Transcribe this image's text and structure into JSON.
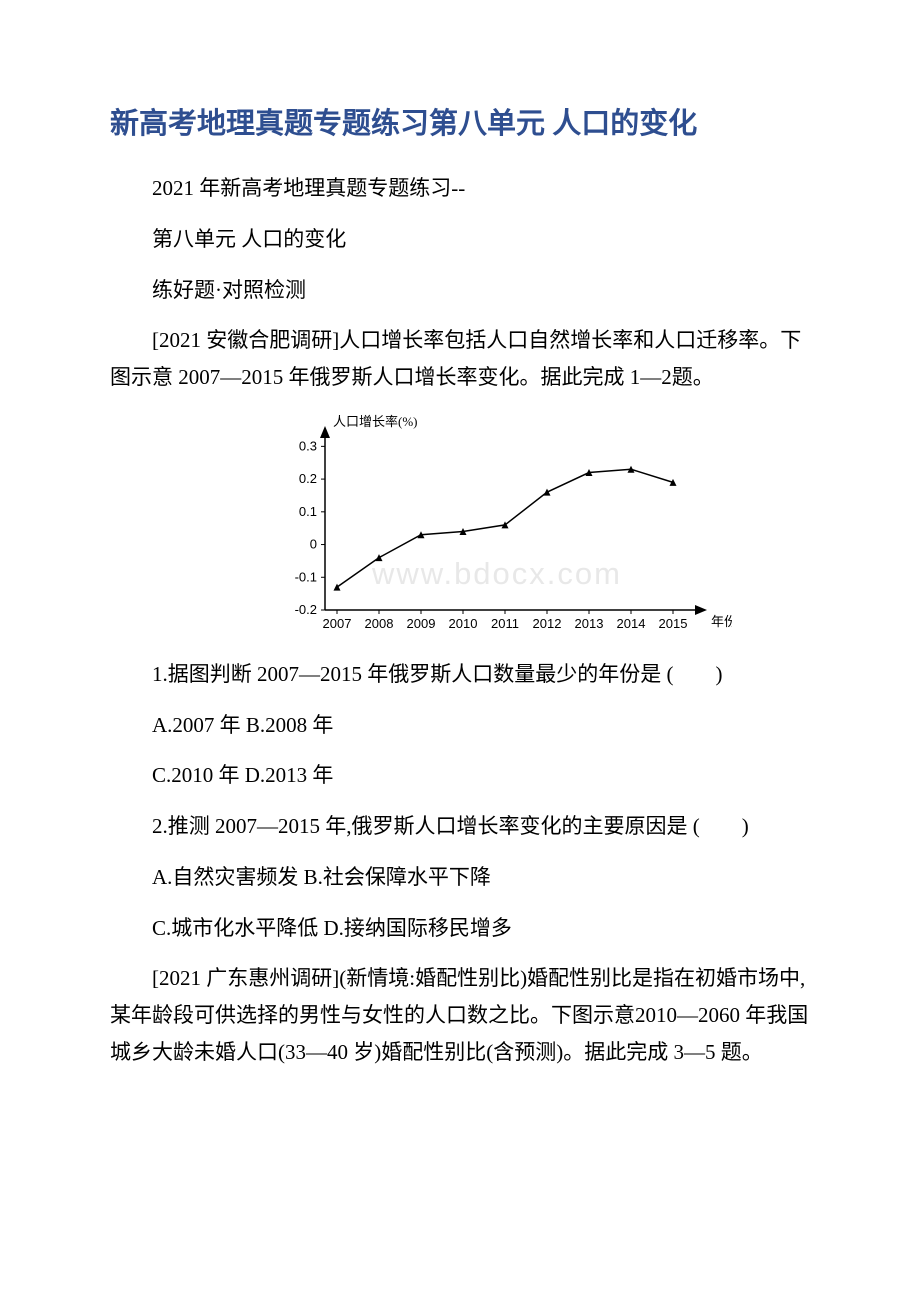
{
  "title": "新高考地理真题专题练习第八单元 人口的变化",
  "intro1": "2021 年新高考地理真题专题练习--",
  "intro2": "第八单元 人口的变化",
  "intro3": "练好题·对照检测",
  "passage1": "[2021 安徽合肥调研]人口增长率包括人口自然增长率和人口迁移率。下图示意 2007—2015 年俄罗斯人口增长率变化。据此完成 1—2题。",
  "chart": {
    "type": "line",
    "ylabel": "人口增长率(%)",
    "xlabel": "年份",
    "ylabel_fontsize": 13,
    "xlabel_fontsize": 13,
    "tick_fontsize": 13,
    "line_color": "#000000",
    "marker_color": "#000000",
    "marker": "triangle",
    "marker_size": 7,
    "line_width": 1.5,
    "axis_color": "#000000",
    "background_color": "#ffffff",
    "x_ticks": [
      "2007",
      "2008",
      "2009",
      "2010",
      "2011",
      "2012",
      "2013",
      "2014",
      "2015"
    ],
    "y_ticks": [
      "-0.2",
      "-0.1",
      "0",
      "0.1",
      "0.2",
      "0.3"
    ],
    "ylim": [
      -0.2,
      0.35
    ],
    "points": [
      {
        "x": "2007",
        "y": -0.13
      },
      {
        "x": "2008",
        "y": -0.04
      },
      {
        "x": "2009",
        "y": 0.03
      },
      {
        "x": "2010",
        "y": 0.04
      },
      {
        "x": "2011",
        "y": 0.06
      },
      {
        "x": "2012",
        "y": 0.16
      },
      {
        "x": "2013",
        "y": 0.22
      },
      {
        "x": "2014",
        "y": 0.23
      },
      {
        "x": "2015",
        "y": 0.19
      }
    ],
    "watermark": "www.bdocx.com"
  },
  "q1": "1.据图判断 2007—2015 年俄罗斯人口数量最少的年份是 (　　)",
  "q1_ab": "A.2007 年 B.2008 年",
  "q1_cd": "C.2010 年 D.2013 年",
  "q2": "2.推测 2007—2015 年,俄罗斯人口增长率变化的主要原因是 (　　)",
  "q2_ab": "A.自然灾害频发 B.社会保障水平下降",
  "q2_cd": "C.城市化水平降低 D.接纳国际移民增多",
  "passage2": "[2021 广东惠州调研](新情境:婚配性别比)婚配性别比是指在初婚市场中,某年龄段可供选择的男性与女性的人口数之比。下图示意2010—2060 年我国城乡大龄未婚人口(33—40 岁)婚配性别比(含预测)。据此完成 3—5 题。"
}
